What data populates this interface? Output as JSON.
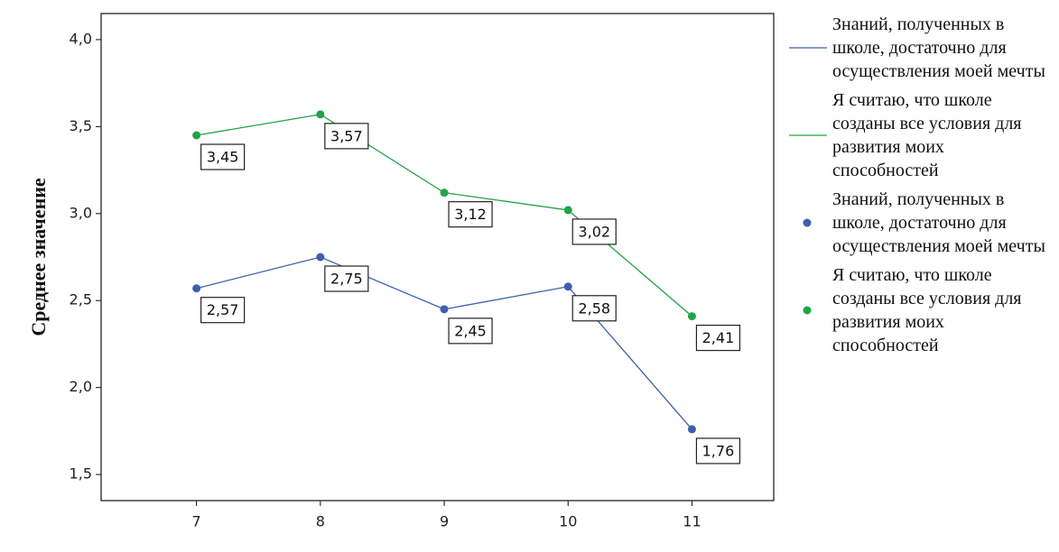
{
  "chart_data": {
    "type": "line",
    "y_label": "Среднее значение",
    "x": [
      7,
      8,
      9,
      10,
      11
    ],
    "xlim": [
      6.23,
      11.66
    ],
    "xticks": [
      7,
      8,
      9,
      10,
      11
    ],
    "ylim": [
      1.35,
      4.15
    ],
    "yticks": [
      {
        "value": 1.5,
        "label": "1,5"
      },
      {
        "value": 2.0,
        "label": "2,0"
      },
      {
        "value": 2.5,
        "label": "2,5"
      },
      {
        "value": 3.0,
        "label": "3,0"
      },
      {
        "value": 3.5,
        "label": "3,5"
      },
      {
        "value": 4.0,
        "label": "4,0"
      }
    ],
    "series": [
      {
        "name": "Знаний, полученных в школе, достаточно для осуществления моей мечты",
        "color": "#3d5fae",
        "values": [
          2.57,
          2.75,
          2.45,
          2.58,
          1.76
        ],
        "value_labels": [
          "2,57",
          "2,75",
          "2,45",
          "2,58",
          "1,76"
        ]
      },
      {
        "name": "Я считаю, что школе созданы все условия для развития моих способностей",
        "color": "#21a34a",
        "values": [
          3.45,
          3.57,
          3.12,
          3.02,
          2.41
        ],
        "value_labels": [
          "3,45",
          "3,57",
          "3,12",
          "3,02",
          "2,41"
        ]
      }
    ]
  }
}
